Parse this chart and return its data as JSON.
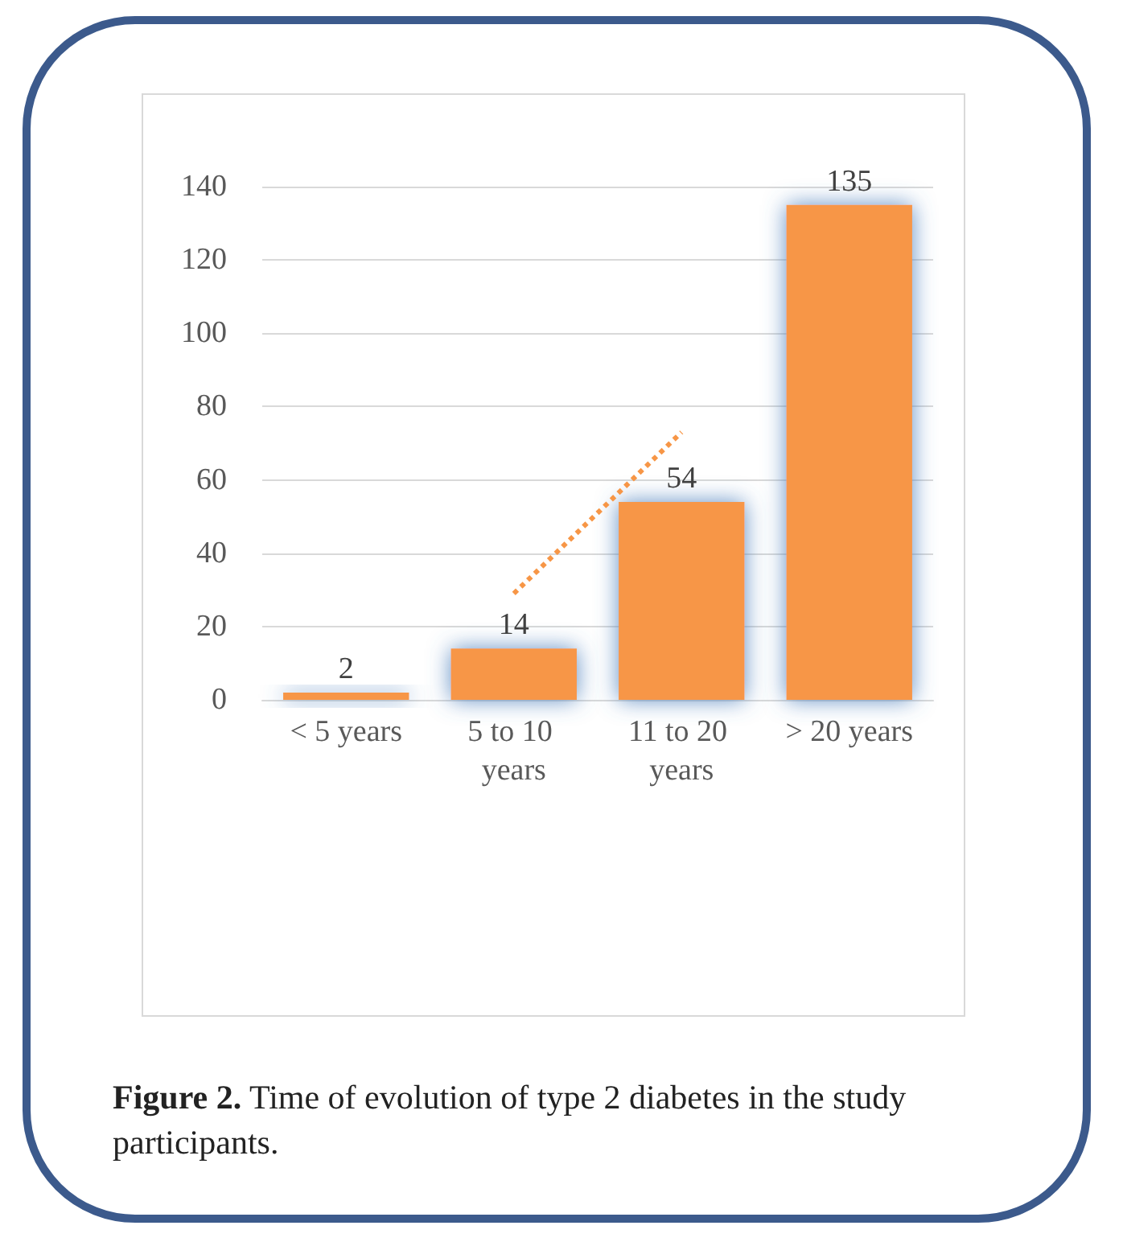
{
  "chart_data": {
    "type": "bar",
    "categories": [
      "< 5 years",
      "5 to 10 years",
      "11 to 20 years",
      "> 20 years"
    ],
    "series": [
      {
        "color": "#f79646",
        "values": [
          2,
          14,
          54,
          135
        ],
        "value_labels": [
          "2",
          "14",
          "54",
          "135"
        ]
      },
      {
        "type": "line",
        "color": "#f79646",
        "line_style": "dotted",
        "marker": "none",
        "values": [
          null,
          29,
          73,
          null
        ]
      }
    ],
    "ylim": [
      0,
      140
    ],
    "yticks": [
      0,
      20,
      40,
      60,
      80,
      100,
      120,
      140
    ],
    "grid": "y",
    "annotations": [
      "Figure 2. Time of evolution of type 2 diabetes in the study participants."
    ]
  }
}
